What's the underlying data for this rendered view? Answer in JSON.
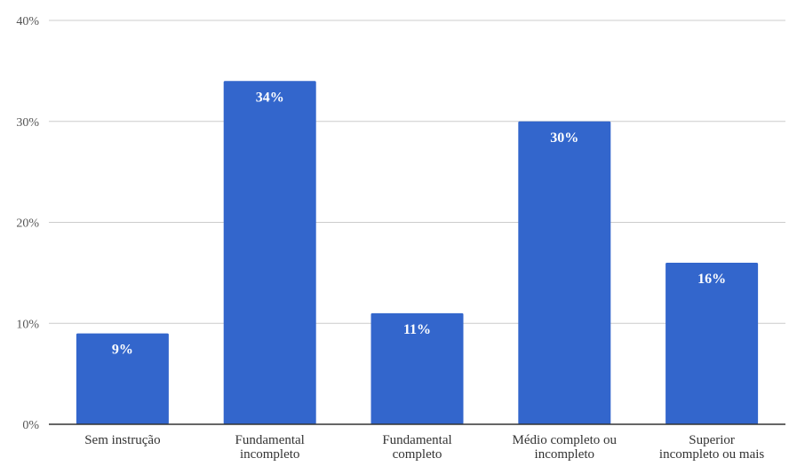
{
  "chart_data": {
    "type": "bar",
    "title": "",
    "xlabel": "",
    "ylabel": "",
    "categories": [
      "Sem instrução",
      "Fundamental incompleto",
      "Fundamental completo",
      "Médio completo ou incompleto",
      "Superior incompleto ou mais"
    ],
    "category_lines": [
      [
        "Sem instrução"
      ],
      [
        "Fundamental",
        "incompleto"
      ],
      [
        "Fundamental",
        "completo"
      ],
      [
        "Médio completo ou",
        "incompleto"
      ],
      [
        "Superior",
        "incompleto ou mais"
      ]
    ],
    "values": [
      9,
      34,
      11,
      30,
      16
    ],
    "data_labels": [
      "9%",
      "34%",
      "11%",
      "30%",
      "16%"
    ],
    "y_ticks": [
      0,
      10,
      20,
      30,
      40
    ],
    "y_tick_labels": [
      "0%",
      "10%",
      "20%",
      "30%",
      "40%"
    ],
    "ylim": [
      0,
      40
    ],
    "grid": true,
    "legend": "none",
    "colors": {
      "bar": "#3366cc",
      "grid": "#cccccc",
      "axis": "#333333"
    }
  }
}
